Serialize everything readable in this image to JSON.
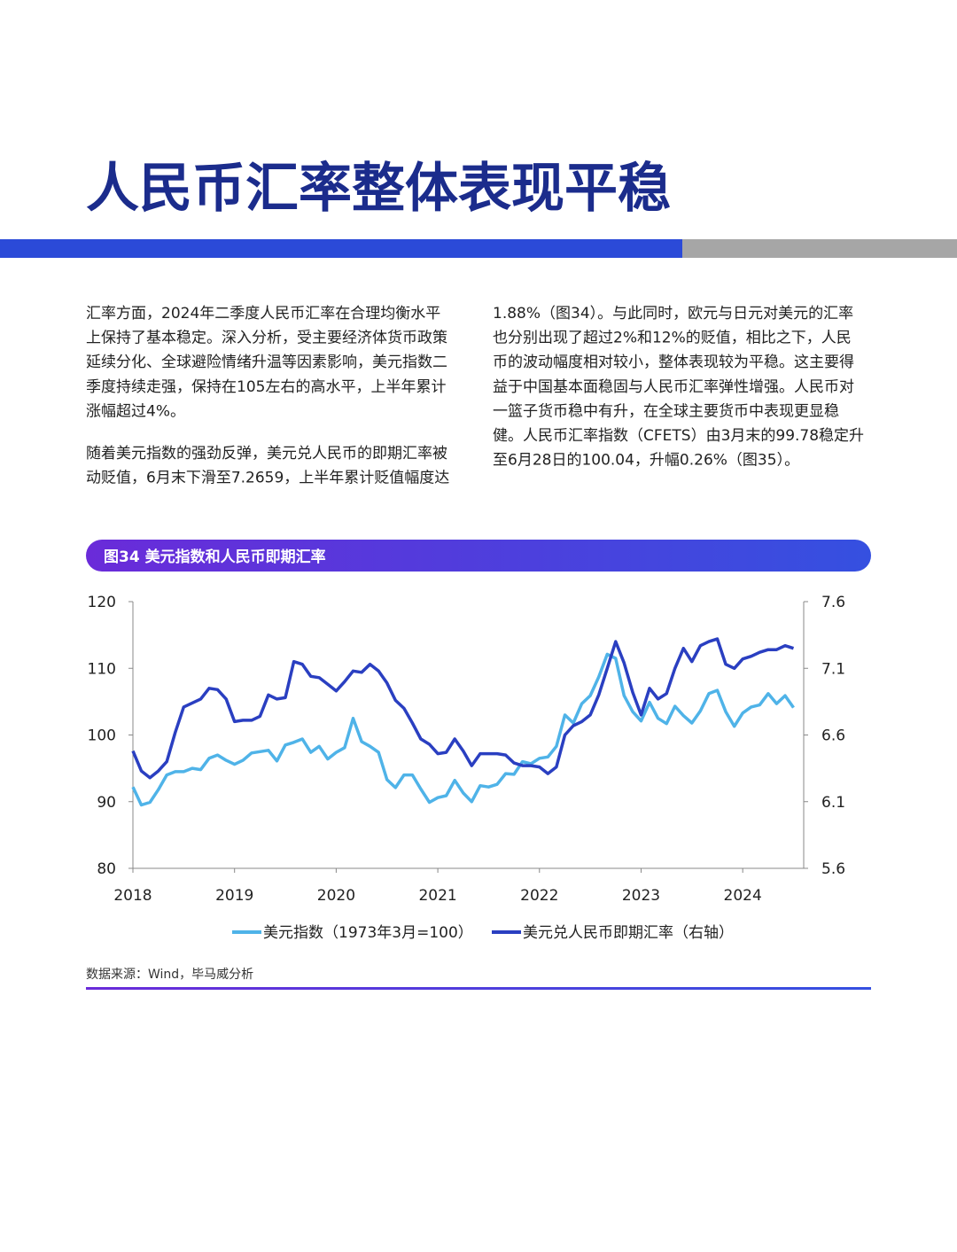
{
  "title": "人民币汇率整体表现平稳",
  "columns": [
    {
      "paragraphs": [
        [
          "汇率方面，2024年二季度人民币汇率在合理均衡水平",
          "上保持了基本稳定。深入分析，受主要经济体货币政策",
          "延续分化、全球避险情绪升温等因素影响，美元指数二",
          "季度持续走强，保持在105左右的高水平，上半年累计",
          "涨幅超过4%。"
        ],
        [
          "随着美元指数的强劲反弹，美元兑人民币的即期汇率被",
          "动贬值，6月末下滑至7.2659，上半年累计贬值幅度达"
        ]
      ]
    },
    {
      "paragraphs": [
        [
          "1.88%（图34）。与此同时，欧元与日元对美元的汇率",
          "也分别出现了超过2%和12%的贬值，相比之下，人民",
          "币的波动幅度相对较小，整体表现较为平稳。这主要得",
          "益于中国基本面稳固与人民币汇率弹性增强。人民币对",
          "一篮子货币稳中有升，在全球主要货币中表现更显稳",
          "健。人民币汇率指数（CFETS）由3月末的99.78稳定升",
          "至6月28日的100.04，升幅0.26%（图35）。"
        ]
      ]
    }
  ],
  "figure_label": "图34 美元指数和人民币即期汇率",
  "source": "数据来源：Wind，毕马威分析",
  "chart_data": {
    "type": "line",
    "x": [
      2018,
      2018.083,
      2018.167,
      2018.25,
      2018.333,
      2018.417,
      2018.5,
      2018.583,
      2018.667,
      2018.75,
      2018.833,
      2018.917,
      2019,
      2019.083,
      2019.167,
      2019.25,
      2019.333,
      2019.417,
      2019.5,
      2019.583,
      2019.667,
      2019.75,
      2019.833,
      2019.917,
      2020,
      2020.083,
      2020.167,
      2020.25,
      2020.333,
      2020.417,
      2020.5,
      2020.583,
      2020.667,
      2020.75,
      2020.833,
      2020.917,
      2021,
      2021.083,
      2021.167,
      2021.25,
      2021.333,
      2021.417,
      2021.5,
      2021.583,
      2021.667,
      2021.75,
      2021.833,
      2021.917,
      2022,
      2022.083,
      2022.167,
      2022.25,
      2022.333,
      2022.417,
      2022.5,
      2022.583,
      2022.667,
      2022.75,
      2022.833,
      2022.917,
      2023,
      2023.083,
      2023.167,
      2023.25,
      2023.333,
      2023.417,
      2023.5,
      2023.583,
      2023.667,
      2023.75,
      2023.833,
      2023.917,
      2024,
      2024.083,
      2024.167,
      2024.25,
      2024.333,
      2024.417,
      2024.5
    ],
    "series": [
      {
        "name": "美元指数（1973年3月=100）",
        "color": "#4fb3e8",
        "axis": "y",
        "values": [
          92.2,
          89.5,
          89.9,
          91.8,
          94.0,
          94.5,
          94.5,
          95.0,
          94.8,
          96.5,
          97.0,
          96.2,
          95.6,
          96.2,
          97.3,
          97.5,
          97.7,
          96.1,
          98.5,
          98.9,
          99.4,
          97.4,
          98.3,
          96.4,
          97.4,
          98.1,
          102.5,
          99.0,
          98.3,
          97.4,
          93.3,
          92.1,
          94.0,
          94.0,
          91.9,
          89.9,
          90.6,
          90.9,
          93.2,
          91.3,
          90.0,
          92.4,
          92.2,
          92.6,
          94.2,
          94.1,
          96.0,
          95.7,
          96.5,
          96.7,
          98.3,
          103.0,
          101.8,
          104.7,
          105.9,
          108.7,
          112.1,
          111.5,
          105.9,
          103.5,
          102.1,
          104.9,
          102.5,
          101.7,
          104.3,
          102.9,
          101.8,
          103.6,
          106.2,
          106.7,
          103.5,
          101.3,
          103.3,
          104.2,
          104.5,
          106.2,
          104.7,
          105.9,
          104.1
        ]
      },
      {
        "name": "美元兑人民币即期汇率（右轴）",
        "color": "#2a3fc1",
        "axis": "y2",
        "values": [
          6.48,
          6.33,
          6.28,
          6.33,
          6.4,
          6.62,
          6.81,
          6.84,
          6.87,
          6.95,
          6.94,
          6.87,
          6.7,
          6.71,
          6.71,
          6.74,
          6.9,
          6.87,
          6.88,
          7.15,
          7.13,
          7.04,
          7.03,
          6.98,
          6.93,
          7.0,
          7.08,
          7.07,
          7.13,
          7.08,
          6.99,
          6.86,
          6.8,
          6.69,
          6.57,
          6.53,
          6.46,
          6.47,
          6.57,
          6.48,
          6.37,
          6.46,
          6.46,
          6.46,
          6.45,
          6.39,
          6.37,
          6.37,
          6.36,
          6.31,
          6.36,
          6.6,
          6.67,
          6.7,
          6.75,
          6.9,
          7.1,
          7.3,
          7.14,
          6.92,
          6.75,
          6.95,
          6.87,
          6.91,
          7.1,
          7.25,
          7.15,
          7.27,
          7.3,
          7.32,
          7.13,
          7.1,
          7.17,
          7.19,
          7.22,
          7.24,
          7.24,
          7.27,
          7.25
        ]
      }
    ],
    "xlim": [
      2018,
      2024.6
    ],
    "xticks": [
      2018,
      2019,
      2020,
      2021,
      2022,
      2023,
      2024
    ],
    "ylim": [
      80,
      120
    ],
    "yticks": [
      80,
      90,
      100,
      110,
      120
    ],
    "y2lim": [
      5.6,
      7.6
    ],
    "y2ticks": [
      5.6,
      6.1,
      6.6,
      7.1,
      7.6
    ]
  }
}
